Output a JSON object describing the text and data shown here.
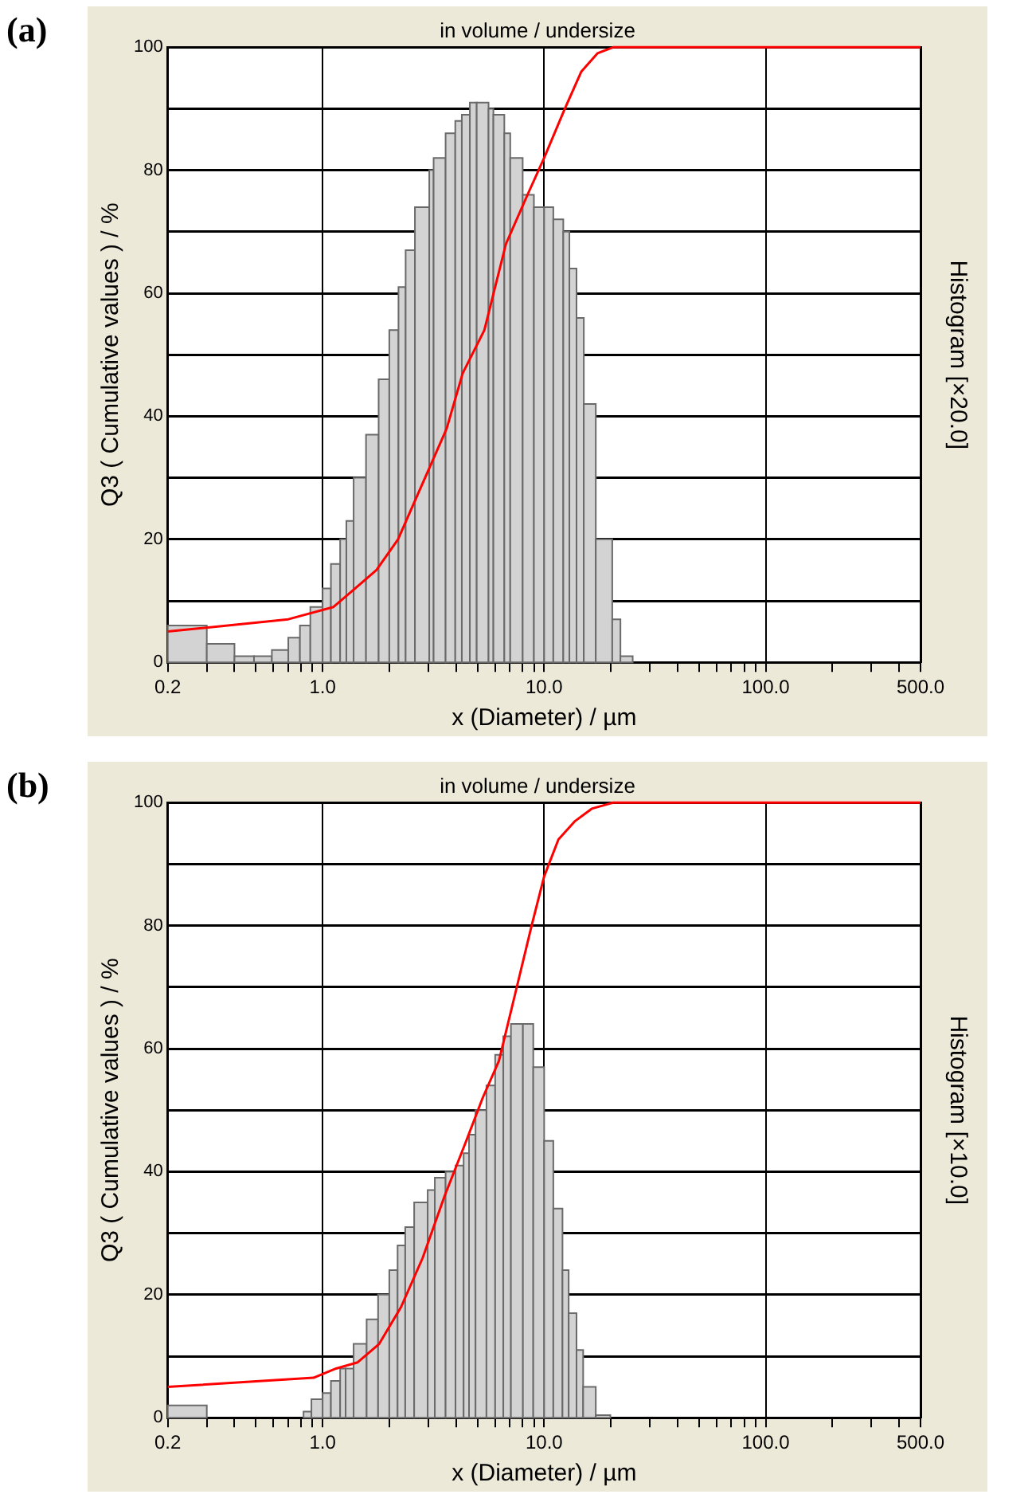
{
  "chart_data": [
    {
      "type": "histogram",
      "title": "in volume / undersize",
      "xlabel": "x (Diameter) / µm",
      "ylabel": "Q3 ( Cumulative values ) / %",
      "y2label": "Histogram [×20.0]",
      "annotations": [
        "(a)"
      ],
      "log": "x",
      "grid": true,
      "legend": false,
      "xlim": [
        0.2,
        500
      ],
      "ylim": [
        0,
        100
      ],
      "xticks": [
        {
          "value": 0.2,
          "label": "0.2"
        },
        {
          "value": 0.3,
          "label": null
        },
        {
          "value": 0.4,
          "label": null
        },
        {
          "value": 0.5,
          "label": null
        },
        {
          "value": 0.6,
          "label": null
        },
        {
          "value": 0.7,
          "label": null
        },
        {
          "value": 0.8,
          "label": null
        },
        {
          "value": 0.9,
          "label": null
        },
        {
          "value": 1,
          "label": "1.0"
        },
        {
          "value": 2,
          "label": null
        },
        {
          "value": 3,
          "label": null
        },
        {
          "value": 4,
          "label": null
        },
        {
          "value": 5,
          "label": null
        },
        {
          "value": 6,
          "label": null
        },
        {
          "value": 7,
          "label": null
        },
        {
          "value": 8,
          "label": null
        },
        {
          "value": 9,
          "label": null
        },
        {
          "value": 10,
          "label": "10.0"
        },
        {
          "value": 20,
          "label": null
        },
        {
          "value": 30,
          "label": null
        },
        {
          "value": 40,
          "label": null
        },
        {
          "value": 50,
          "label": null
        },
        {
          "value": 60,
          "label": null
        },
        {
          "value": 70,
          "label": null
        },
        {
          "value": 80,
          "label": null
        },
        {
          "value": 90,
          "label": null
        },
        {
          "value": 100,
          "label": "100.0"
        },
        {
          "value": 200,
          "label": null
        },
        {
          "value": 300,
          "label": null
        },
        {
          "value": 400,
          "label": null
        },
        {
          "value": 500,
          "label": "500.0"
        }
      ],
      "yticks": [
        0,
        {
          "value": 10,
          "label": null
        },
        20,
        {
          "value": 30,
          "label": null
        },
        40,
        {
          "value": 50,
          "label": null
        },
        60,
        {
          "value": 70,
          "label": null
        },
        80,
        {
          "value": 90,
          "label": null
        },
        100
      ],
      "series": [
        {
          "type": "histogram",
          "color": "#d3d3d3",
          "bins": [
            0.2,
            0.3,
            0.4,
            0.49,
            0.59,
            0.7,
            0.79,
            0.88,
            1.0,
            1.09,
            1.2,
            1.28,
            1.38,
            1.57,
            1.79,
            2.0,
            2.2,
            2.37,
            2.61,
            3.03,
            3.17,
            3.59,
            3.97,
            4.25,
            4.62,
            4.96,
            5.61,
            5.9,
            6.61,
            7.03,
            8.0,
            8.99,
            10.0,
            11.0,
            12.2,
            13.0,
            14.0,
            15.1,
            17.1,
            20.3,
            22.1,
            25.1
          ],
          "values": [
            6,
            3,
            1,
            1,
            2,
            4,
            6,
            9,
            12,
            16,
            20,
            23,
            30,
            37,
            46,
            54,
            61,
            67,
            74,
            80,
            82,
            86,
            88,
            89,
            91,
            91,
            90,
            89,
            86,
            82,
            76,
            74,
            74,
            72,
            70,
            64,
            56,
            42,
            20,
            7,
            1
          ]
        },
        {
          "type": "line",
          "color": "#ff0000",
          "x": [
            0.2,
            0.7,
            1.12,
            1.4,
            1.75,
            2.19,
            2.9,
            3.63,
            4.29,
            5.37,
            6.72,
            8.41,
            10.0,
            12.4,
            14.7,
            17.4,
            20.6,
            23.8,
            500
          ],
          "values": [
            5,
            7,
            9,
            12,
            15,
            20,
            30,
            38,
            47,
            54,
            68,
            76,
            82,
            90,
            96,
            99,
            100,
            100,
            100
          ]
        }
      ]
    },
    {
      "type": "histogram",
      "title": "in volume / undersize",
      "xlabel": "x (Diameter) / µm",
      "ylabel": "Q3 ( Cumulative values ) / %",
      "y2label": "Histogram [×10.0]",
      "annotations": [
        "(b)"
      ],
      "log": "x",
      "grid": true,
      "legend": false,
      "xlim": [
        0.2,
        500
      ],
      "ylim": [
        0,
        100
      ],
      "xticks": [
        {
          "value": 0.2,
          "label": "0.2"
        },
        {
          "value": 0.3,
          "label": null
        },
        {
          "value": 0.4,
          "label": null
        },
        {
          "value": 0.5,
          "label": null
        },
        {
          "value": 0.6,
          "label": null
        },
        {
          "value": 0.7,
          "label": null
        },
        {
          "value": 0.8,
          "label": null
        },
        {
          "value": 0.9,
          "label": null
        },
        {
          "value": 1,
          "label": "1.0"
        },
        {
          "value": 2,
          "label": null
        },
        {
          "value": 3,
          "label": null
        },
        {
          "value": 4,
          "label": null
        },
        {
          "value": 5,
          "label": null
        },
        {
          "value": 6,
          "label": null
        },
        {
          "value": 7,
          "label": null
        },
        {
          "value": 8,
          "label": null
        },
        {
          "value": 9,
          "label": null
        },
        {
          "value": 10,
          "label": "10.0"
        },
        {
          "value": 20,
          "label": null
        },
        {
          "value": 30,
          "label": null
        },
        {
          "value": 40,
          "label": null
        },
        {
          "value": 50,
          "label": null
        },
        {
          "value": 60,
          "label": null
        },
        {
          "value": 70,
          "label": null
        },
        {
          "value": 80,
          "label": null
        },
        {
          "value": 90,
          "label": null
        },
        {
          "value": 100,
          "label": "100.0"
        },
        {
          "value": 200,
          "label": null
        },
        {
          "value": 300,
          "label": null
        },
        {
          "value": 400,
          "label": null
        },
        {
          "value": 500,
          "label": "500.0"
        }
      ],
      "yticks": [
        0,
        {
          "value": 10,
          "label": null
        },
        20,
        {
          "value": 30,
          "label": null
        },
        40,
        {
          "value": 50,
          "label": null
        },
        60,
        {
          "value": 70,
          "label": null
        },
        80,
        {
          "value": 90,
          "label": null
        },
        100
      ],
      "series": [
        {
          "type": "histogram",
          "color": "#d3d3d3",
          "bins": [
            0.2,
            0.3,
            0.82,
            0.89,
            1.0,
            1.09,
            1.2,
            1.27,
            1.38,
            1.58,
            1.78,
            2.0,
            2.18,
            2.36,
            2.59,
            2.98,
            3.21,
            3.59,
            3.98,
            4.33,
            4.58,
            4.9,
            5.49,
            6.01,
            6.54,
            7.08,
            8.02,
            8.93,
            10.0,
            11.0,
            12.1,
            12.9,
            14.0,
            15.0,
            17.1,
            19.9
          ],
          "values": [
            2,
            null,
            1,
            3,
            4,
            6,
            8,
            8,
            12,
            16,
            20,
            24,
            28,
            31,
            35,
            37,
            39,
            40,
            41,
            43,
            46,
            50,
            54,
            59,
            62,
            64,
            64,
            57,
            45,
            34,
            24,
            17,
            11,
            5,
            0.4
          ]
        },
        {
          "type": "line",
          "color": "#ff0000",
          "x": [
            0.2,
            0.91,
            1.15,
            1.44,
            1.8,
            2.26,
            2.83,
            3.55,
            4.45,
            5.28,
            6.25,
            7.41,
            8.78,
            10.0,
            11.6,
            13.8,
            16.4,
            20.5,
            500
          ],
          "values": [
            5,
            6.5,
            8,
            9,
            12,
            18,
            26,
            36,
            45,
            52,
            58,
            69,
            80,
            88,
            94,
            97,
            99,
            100,
            100
          ]
        }
      ]
    }
  ]
}
